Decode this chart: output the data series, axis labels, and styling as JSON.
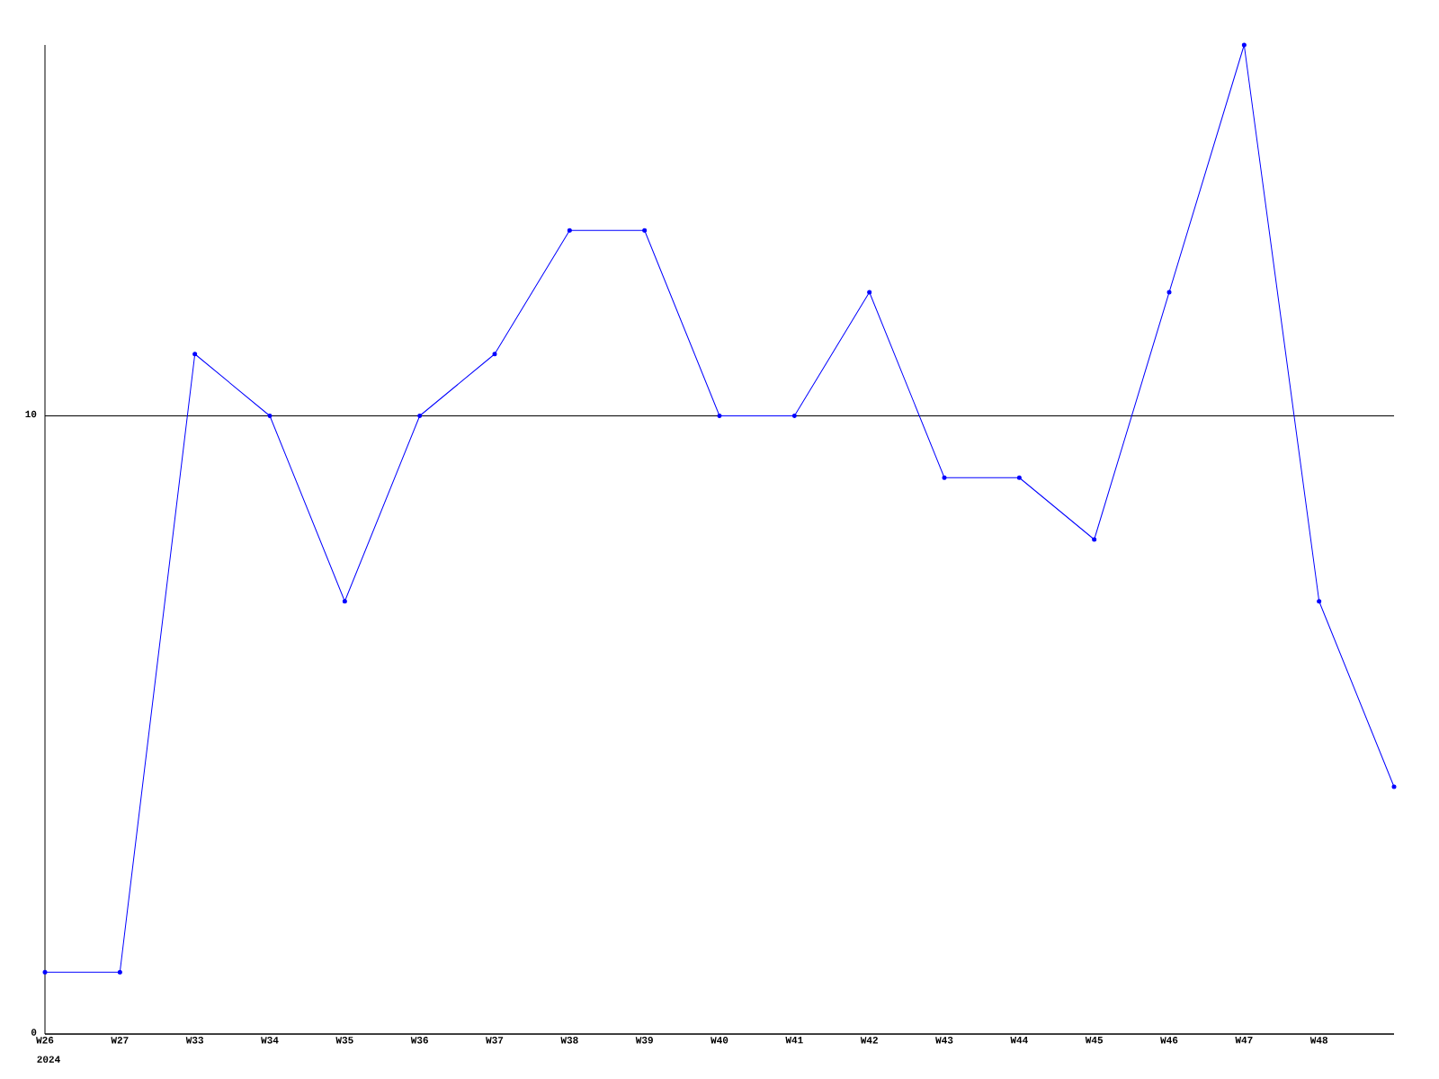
{
  "chart_data": {
    "type": "line",
    "categories": [
      "W26",
      "W27",
      "W33",
      "W34",
      "W35",
      "W36",
      "W37",
      "W38",
      "W39",
      "W40",
      "W41",
      "W42",
      "W43",
      "W44",
      "W45",
      "W46",
      "W47",
      "W48",
      null
    ],
    "series": [
      {
        "color": "#0000ff",
        "values": [
          1,
          1,
          11,
          10,
          7,
          10,
          11,
          13,
          13,
          10,
          10,
          12,
          9,
          9,
          8,
          12,
          16,
          7,
          4
        ]
      }
    ],
    "ylim": [
      0,
      16
    ],
    "yticks": [
      0,
      10
    ],
    "grid": "y",
    "marker": "circle",
    "line_style": "solid",
    "annotations": [
      "2024"
    ]
  }
}
